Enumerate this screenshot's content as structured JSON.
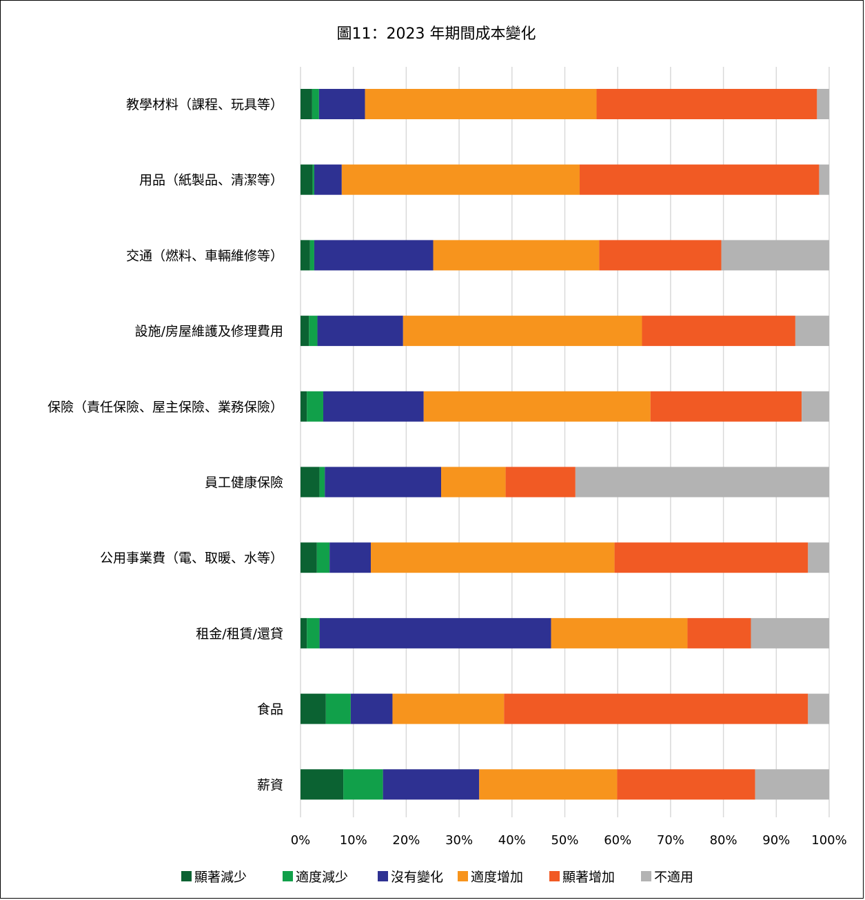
{
  "chart_data": {
    "type": "bar",
    "orientation": "horizontal",
    "stacked": "percent",
    "title": "圖11：2023 年期間成本變化",
    "xlabel": "",
    "ylabel": "",
    "xlim": [
      0,
      100
    ],
    "x_ticks": [
      "0%",
      "10%",
      "20%",
      "30%",
      "40%",
      "50%",
      "60%",
      "70%",
      "80%",
      "90%",
      "100%"
    ],
    "grid": "vertical",
    "legend_position": "bottom",
    "categories": [
      "教學材料（課程、玩具等）",
      "用品（紙製品、清潔等）",
      "交通（燃料、車輛維修等）",
      "設施/房屋維護及修理費用",
      "保險（責任保險、屋主保險、業務保險）",
      "員工健康保險",
      "公用事業費（電、取暖、水等）",
      "租金/租賃/還貸",
      "食品",
      "薪資"
    ],
    "series": [
      {
        "name": "顯著減少",
        "color": "#0b6232",
        "values": [
          2.2,
          2.3,
          1.8,
          1.6,
          1.2,
          3.6,
          3.1,
          1.2,
          4.8,
          8.1
        ]
      },
      {
        "name": "適度減少",
        "color": "#11a04a",
        "values": [
          1.3,
          0.3,
          0.8,
          1.6,
          3.1,
          1.0,
          2.4,
          2.4,
          4.7,
          7.5
        ]
      },
      {
        "name": "沒有變化",
        "color": "#2e3192",
        "values": [
          8.7,
          5.2,
          22.5,
          16.2,
          19.0,
          22.0,
          7.8,
          43.8,
          7.9,
          18.2
        ]
      },
      {
        "name": "適度增加",
        "color": "#f7941d",
        "values": [
          43.8,
          45.0,
          31.4,
          45.2,
          42.9,
          12.2,
          46.1,
          25.8,
          21.1,
          26.1
        ]
      },
      {
        "name": "顯著增加",
        "color": "#f15a24",
        "values": [
          41.7,
          45.3,
          23.1,
          29.0,
          28.6,
          13.2,
          36.6,
          12.0,
          57.5,
          26.1
        ]
      },
      {
        "name": "不適用",
        "color": "#b3b3b3",
        "values": [
          2.3,
          1.9,
          20.4,
          6.4,
          5.2,
          48.0,
          4.0,
          14.8,
          4.0,
          14.0
        ]
      }
    ]
  }
}
